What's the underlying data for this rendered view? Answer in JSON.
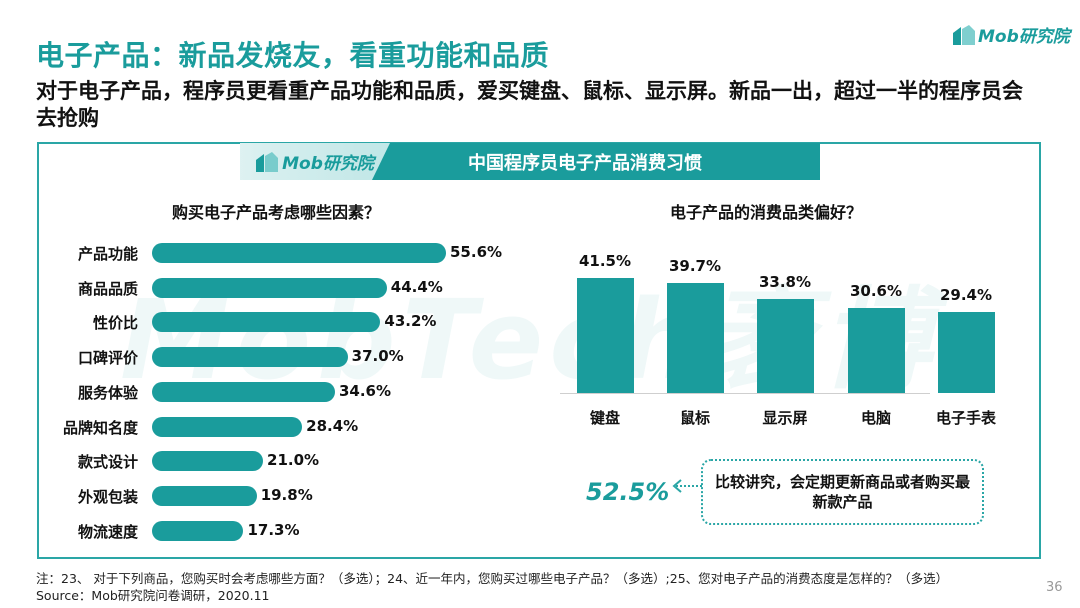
{
  "header": {
    "title": "电子产品：新品发烧友，看重功能和品质",
    "subtitle": "对于电子产品，程序员更看重产品功能和品质，爱买键盘、鼠标、显示屏。新品一出，超过一半的程序员会去抢购",
    "logo_text": "Mob研究院"
  },
  "banner": {
    "logo_text": "Mob研究院",
    "title": "中国程序员电子产品消费习惯"
  },
  "watermark": "MobTech袤博",
  "chart_data": [
    {
      "type": "bar",
      "orientation": "horizontal",
      "title": "购买电子产品考虑哪些因素？",
      "categories": [
        "产品功能",
        "商品品质",
        "性价比",
        "口碑评价",
        "服务体验",
        "品牌知名度",
        "款式设计",
        "外观包装",
        "物流速度"
      ],
      "values": [
        55.6,
        44.4,
        43.2,
        37.0,
        34.6,
        28.4,
        21.0,
        19.8,
        17.3
      ],
      "value_labels": [
        "55.6%",
        "44.4%",
        "43.2%",
        "37.0%",
        "34.6%",
        "28.4%",
        "21.0%",
        "19.8%",
        "17.3%"
      ],
      "unit": "%",
      "color": "#1a9c9c"
    },
    {
      "type": "bar",
      "orientation": "vertical",
      "title": "电子产品的消费品类偏好？",
      "categories": [
        "键盘",
        "鼠标",
        "显示屏",
        "电脑",
        "电子手表"
      ],
      "values": [
        41.5,
        39.7,
        33.8,
        30.6,
        29.4
      ],
      "value_labels": [
        "41.5%",
        "39.7%",
        "33.8%",
        "30.6%",
        "29.4%"
      ],
      "unit": "%",
      "color": "#1a9c9c"
    }
  ],
  "callout": {
    "value": "52.5%",
    "text": "比较讲究，会定期更新商品或者购买最新款产品"
  },
  "footnote": {
    "note": "注：23、 对于下列商品，您购买时会考虑哪些方面？（多选）；24、近一年内，您购买过哪些电子产品？（多选）;25、您对电子产品的消费态度是怎样的？（多选）",
    "source": "Source：Mob研究院问卷调研，2020.11"
  },
  "page_number": "36",
  "colors": {
    "accent": "#1a9c9c",
    "frame": "#2aa6a6"
  }
}
